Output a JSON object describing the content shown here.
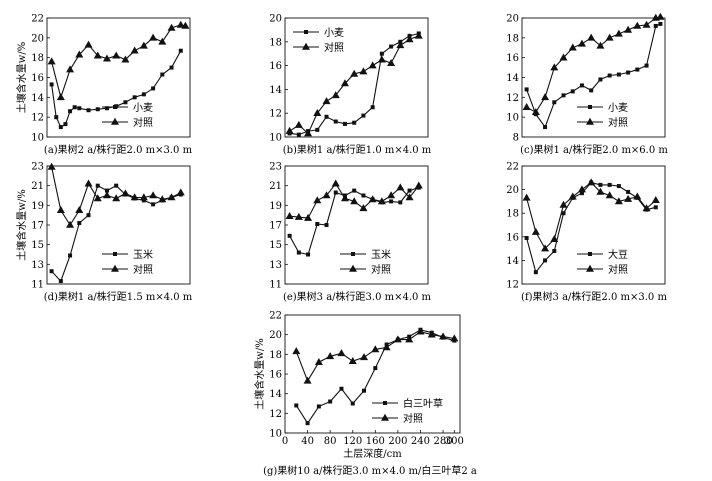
{
  "figure": {
    "ylabel": "土壤含水量w/%",
    "xlabel": "土层深度/cm"
  },
  "legend_labels": {
    "wheat": "小麦",
    "control": "对照",
    "corn": "玉米",
    "soybean": "大豆",
    "clover": "白三叶草"
  },
  "chart_data": [
    {
      "id": "a",
      "type": "line",
      "title": "(a)果树2 a/株行距2.0 m×3.0 m",
      "xlabel": "土层深度/cm",
      "ylabel": "土壤含水量w/%",
      "xlim": [
        0,
        310
      ],
      "ylim": [
        10,
        22
      ],
      "yticks": [
        10,
        12,
        14,
        16,
        18,
        20,
        22
      ],
      "legend": "bottom-right",
      "series": [
        {
          "name": "小麦",
          "marker": "square",
          "x": [
            10,
            20,
            30,
            40,
            50,
            60,
            70,
            90,
            110,
            130,
            150,
            170,
            190,
            210,
            230,
            250,
            270,
            290
          ],
          "values": [
            15.3,
            12.0,
            11.0,
            11.3,
            12.6,
            13.0,
            12.9,
            12.7,
            12.8,
            12.9,
            13.1,
            13.5,
            14.0,
            14.3,
            14.9,
            16.3,
            17.0,
            18.7
          ]
        },
        {
          "name": "对照",
          "marker": "triangle",
          "x": [
            10,
            30,
            50,
            70,
            90,
            110,
            130,
            150,
            170,
            190,
            210,
            230,
            250,
            270,
            290,
            300
          ],
          "values": [
            17.6,
            14.0,
            16.8,
            18.3,
            19.3,
            18.2,
            17.9,
            18.2,
            17.8,
            18.7,
            19.2,
            20.0,
            19.6,
            21.0,
            21.3,
            21.2
          ]
        }
      ]
    },
    {
      "id": "b",
      "type": "line",
      "title": "(b)果树1 a/株行距1.0 m×4.0 m",
      "xlabel": "土层深度/cm",
      "ylabel": "土壤含水量w/%",
      "xlim": [
        0,
        310
      ],
      "ylim": [
        10,
        20
      ],
      "yticks": [
        10,
        12,
        14,
        16,
        18,
        20
      ],
      "legend": "top-left",
      "series": [
        {
          "name": "小麦",
          "marker": "square",
          "x": [
            10,
            30,
            50,
            70,
            90,
            110,
            130,
            150,
            170,
            190,
            210,
            230,
            250,
            270,
            290
          ],
          "values": [
            10.3,
            10.2,
            10.5,
            10.6,
            11.7,
            11.3,
            11.1,
            11.2,
            11.8,
            12.5,
            17.0,
            17.6,
            18.0,
            18.5,
            18.7
          ]
        },
        {
          "name": "对照",
          "marker": "triangle",
          "x": [
            10,
            30,
            50,
            70,
            90,
            110,
            130,
            150,
            170,
            190,
            210,
            230,
            250,
            270,
            290
          ],
          "values": [
            10.5,
            11.0,
            10.3,
            12.0,
            13.0,
            13.5,
            14.5,
            15.3,
            15.5,
            16.0,
            16.5,
            16.2,
            17.7,
            18.2,
            18.5
          ]
        }
      ]
    },
    {
      "id": "c",
      "type": "line",
      "title": "(c)果树1 a/株行距2.0 m×6.0 m",
      "xlabel": "土层深度/cm",
      "ylabel": "土壤含水量w/%",
      "xlim": [
        0,
        310
      ],
      "ylim": [
        8,
        20
      ],
      "yticks": [
        8,
        10,
        12,
        14,
        16,
        18,
        20
      ],
      "legend": "bottom-right",
      "series": [
        {
          "name": "小麦",
          "marker": "square",
          "x": [
            10,
            30,
            50,
            70,
            90,
            110,
            130,
            150,
            170,
            190,
            210,
            230,
            250,
            270,
            290,
            300
          ],
          "values": [
            12.8,
            10.3,
            9.0,
            11.5,
            12.2,
            12.6,
            13.2,
            12.7,
            13.8,
            14.2,
            14.3,
            14.5,
            14.8,
            15.2,
            19.2,
            19.4
          ]
        },
        {
          "name": "对照",
          "marker": "triangle",
          "x": [
            10,
            30,
            50,
            70,
            90,
            110,
            130,
            150,
            170,
            190,
            210,
            230,
            250,
            270,
            290,
            300
          ],
          "values": [
            11.0,
            10.5,
            12.0,
            15.0,
            16.0,
            17.0,
            17.4,
            18.0,
            17.2,
            18.0,
            18.4,
            18.8,
            19.2,
            19.3,
            20.0,
            20.1
          ]
        }
      ]
    },
    {
      "id": "d",
      "type": "line",
      "title": "(d)果树1 a/株行距1.5 m×4.0 m",
      "xlabel": "土层深度/cm",
      "ylabel": "土壤含水量w/%",
      "xlim": [
        0,
        310
      ],
      "ylim": [
        11,
        23
      ],
      "yticks": [
        11,
        13,
        15,
        17,
        19,
        21,
        23
      ],
      "legend": "bottom-right",
      "series": [
        {
          "name": "玉米",
          "marker": "square",
          "x": [
            10,
            30,
            50,
            70,
            90,
            110,
            130,
            150,
            170,
            190,
            210,
            230,
            250,
            270,
            290
          ],
          "values": [
            12.3,
            11.3,
            13.9,
            17.2,
            18.0,
            21.0,
            20.5,
            21.0,
            20.1,
            19.7,
            19.5,
            19.1,
            19.5,
            19.8,
            20.1
          ]
        },
        {
          "name": "对照",
          "marker": "triangle",
          "x": [
            10,
            30,
            50,
            70,
            90,
            110,
            130,
            150,
            170,
            190,
            210,
            230,
            250,
            270,
            290
          ],
          "values": [
            22.9,
            18.5,
            17.0,
            18.5,
            21.2,
            19.7,
            20.0,
            19.7,
            20.2,
            19.8,
            19.8,
            20.0,
            19.6,
            19.8,
            20.3
          ]
        }
      ]
    },
    {
      "id": "e",
      "type": "line",
      "title": "(e)果树3 a/株行距3.0 m×4.0 m",
      "xlabel": "土层深度/cm",
      "ylabel": "土壤含水量w/%",
      "xlim": [
        0,
        310
      ],
      "ylim": [
        11,
        23
      ],
      "yticks": [
        11,
        13,
        15,
        17,
        19,
        21,
        23
      ],
      "legend": "bottom-right",
      "series": [
        {
          "name": "玉米",
          "marker": "square",
          "x": [
            10,
            30,
            50,
            70,
            90,
            110,
            130,
            150,
            170,
            190,
            210,
            230,
            250,
            270,
            290
          ],
          "values": [
            15.9,
            14.2,
            14.0,
            17.1,
            17.0,
            20.3,
            20.0,
            20.5,
            20.0,
            19.6,
            19.3,
            19.4,
            19.3,
            20.5,
            20.8
          ]
        },
        {
          "name": "对照",
          "marker": "triangle",
          "x": [
            10,
            30,
            50,
            70,
            90,
            110,
            130,
            150,
            170,
            190,
            210,
            230,
            250,
            270,
            290
          ],
          "values": [
            17.9,
            17.8,
            17.7,
            19.5,
            20.0,
            21.2,
            19.7,
            19.4,
            18.7,
            19.6,
            19.4,
            20.0,
            20.8,
            19.8,
            21.0
          ]
        }
      ]
    },
    {
      "id": "f",
      "type": "line",
      "title": "(f)果树3 a/株行距2.0 m×3.0 m",
      "xlabel": "土层深度/cm",
      "ylabel": "土壤含水量w/%",
      "xlim": [
        0,
        310
      ],
      "ylim": [
        12,
        22
      ],
      "yticks": [
        12,
        14,
        16,
        18,
        20,
        22
      ],
      "legend": "bottom-right",
      "series": [
        {
          "name": "大豆",
          "marker": "square",
          "x": [
            10,
            30,
            50,
            70,
            90,
            110,
            130,
            150,
            170,
            190,
            210,
            230,
            250,
            270,
            290
          ],
          "values": [
            15.9,
            13.0,
            14.0,
            14.8,
            18.0,
            19.3,
            19.7,
            20.6,
            20.4,
            20.4,
            20.3,
            19.8,
            19.3,
            18.3,
            18.5
          ]
        },
        {
          "name": "对照",
          "marker": "triangle",
          "x": [
            10,
            30,
            50,
            70,
            90,
            110,
            130,
            150,
            170,
            190,
            210,
            230,
            250,
            270,
            290
          ],
          "values": [
            19.3,
            16.4,
            15.0,
            15.8,
            18.7,
            19.4,
            20.0,
            20.6,
            19.8,
            19.5,
            19.0,
            19.2,
            19.4,
            18.4,
            19.1
          ]
        }
      ]
    },
    {
      "id": "g",
      "type": "line",
      "title": "(g)果树10 a/株行距3.0 m×4.0 m/白三叶草2 a",
      "xlabel": "土层深度/cm",
      "ylabel": "土壤含水量w/%",
      "xlim": [
        0,
        310
      ],
      "ylim": [
        10,
        22
      ],
      "yticks": [
        10,
        12,
        14,
        16,
        18,
        20,
        22
      ],
      "xticks": [
        0,
        40,
        80,
        120,
        160,
        200,
        240,
        280,
        300
      ],
      "legend": "bottom-right",
      "series": [
        {
          "name": "白三叶草",
          "marker": "square",
          "x": [
            20,
            40,
            60,
            80,
            100,
            120,
            140,
            160,
            180,
            200,
            220,
            240,
            260,
            280,
            300
          ],
          "values": [
            12.8,
            11.0,
            12.7,
            13.2,
            14.5,
            13.0,
            14.3,
            16.6,
            19.0,
            19.5,
            19.8,
            20.5,
            20.2,
            19.7,
            19.4
          ]
        },
        {
          "name": "对照",
          "marker": "triangle",
          "x": [
            20,
            40,
            60,
            80,
            100,
            120,
            140,
            160,
            180,
            200,
            220,
            240,
            260,
            280,
            300
          ],
          "values": [
            18.3,
            15.3,
            17.2,
            17.8,
            18.1,
            17.3,
            17.7,
            18.5,
            18.7,
            19.5,
            19.5,
            20.3,
            20.0,
            19.8,
            19.6
          ]
        }
      ]
    }
  ]
}
